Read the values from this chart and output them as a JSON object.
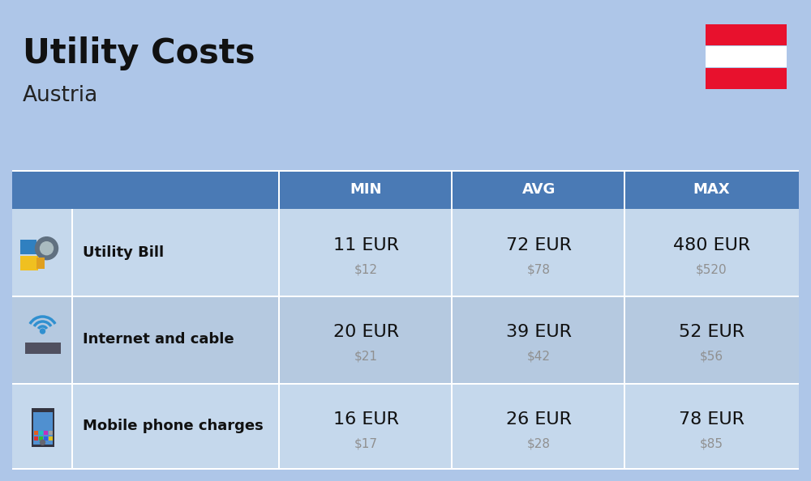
{
  "title": "Utility Costs",
  "subtitle": "Austria",
  "bg_color": "#aec6e8",
  "header_bg": "#4a7ab5",
  "header_text_color": "#ffffff",
  "row_bg_light": "#c5d8ec",
  "row_bg_dark": "#b5c9e0",
  "table_border_color": "#ffffff",
  "headers": [
    "MIN",
    "AVG",
    "MAX"
  ],
  "rows": [
    {
      "label": "Utility Bill",
      "min_eur": "11 EUR",
      "min_usd": "$12",
      "avg_eur": "72 EUR",
      "avg_usd": "$78",
      "max_eur": "480 EUR",
      "max_usd": "$520"
    },
    {
      "label": "Internet and cable",
      "min_eur": "20 EUR",
      "min_usd": "$21",
      "avg_eur": "39 EUR",
      "avg_usd": "$42",
      "max_eur": "52 EUR",
      "max_usd": "$56"
    },
    {
      "label": "Mobile phone charges",
      "min_eur": "16 EUR",
      "min_usd": "$17",
      "avg_eur": "26 EUR",
      "avg_usd": "$28",
      "max_eur": "78 EUR",
      "max_usd": "$85"
    }
  ],
  "flag_red": "#e8112d",
  "flag_white": "#ffffff",
  "title_fontsize": 30,
  "subtitle_fontsize": 19,
  "header_fontsize": 13,
  "row_label_fontsize": 13,
  "row_eur_fontsize": 16,
  "row_usd_fontsize": 11,
  "usd_color": "#909090",
  "fig_w": 10.0,
  "fig_h": 5.94,
  "dpi": 100
}
